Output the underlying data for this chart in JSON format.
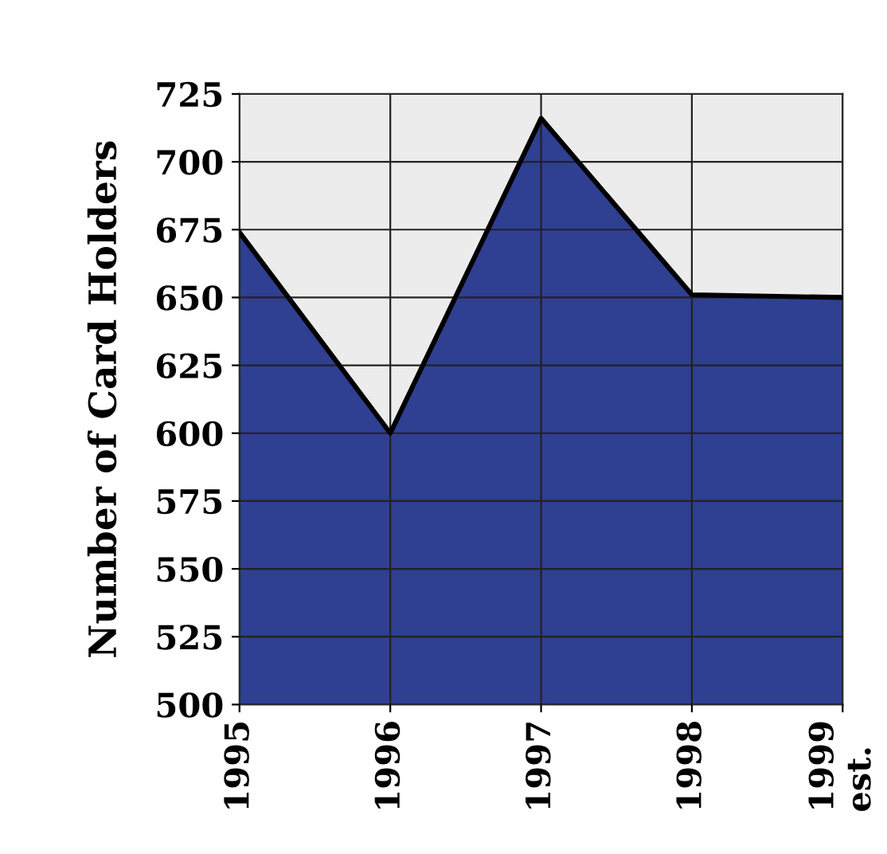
{
  "chart_data": {
    "type": "area",
    "ylabel": "Number of Card Holders",
    "categories": [
      "1995",
      "1996",
      "1997",
      "1998",
      "1999\nest."
    ],
    "series": [
      {
        "color": "#2f3f91",
        "values": [
          674,
          600,
          716,
          651,
          650
        ]
      }
    ],
    "ylim": [
      500,
      725
    ],
    "yticks": [
      500,
      525,
      550,
      575,
      600,
      625,
      650,
      675,
      700,
      725
    ],
    "grid": true,
    "legend": false
  }
}
